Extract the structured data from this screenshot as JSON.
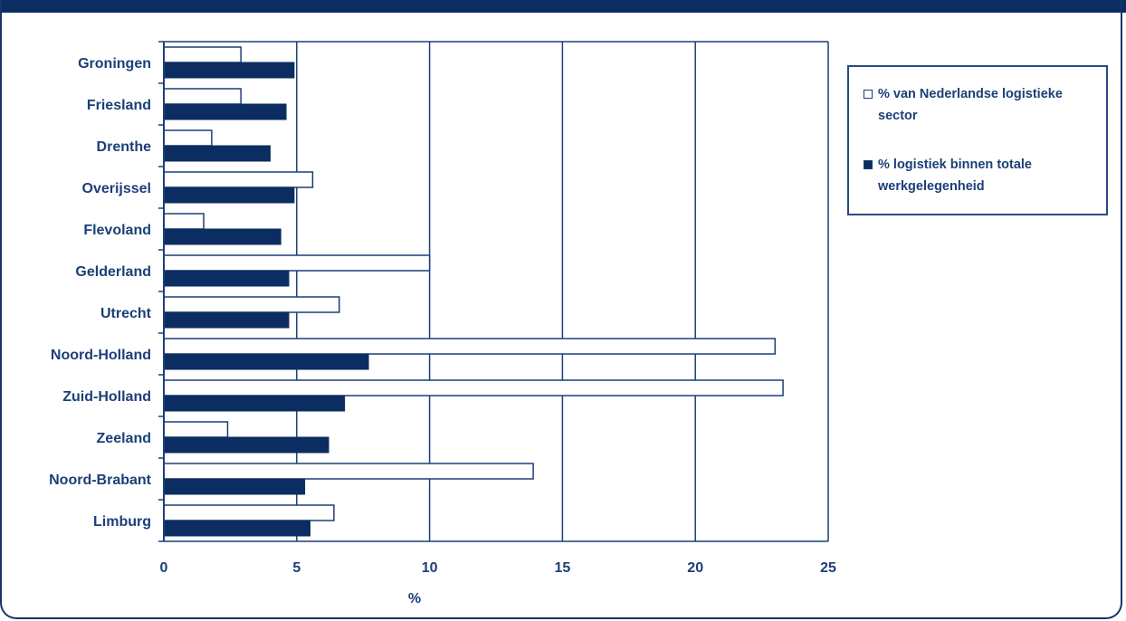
{
  "chart_data": {
    "type": "bar",
    "orientation": "horizontal",
    "categories": [
      "Groningen",
      "Friesland",
      "Drenthe",
      "Overijssel",
      "Flevoland",
      "Gelderland",
      "Utrecht",
      "Noord-Holland",
      "Zuid-Holland",
      "Zeeland",
      "Noord-Brabant",
      "Limburg"
    ],
    "series": [
      {
        "name": "% van Nederlandse logistieke sector",
        "values": [
          2.9,
          2.9,
          1.8,
          5.6,
          1.5,
          10.0,
          6.6,
          23.0,
          23.3,
          2.4,
          13.9,
          6.4
        ],
        "fill": "#ffffff",
        "stroke": "#1c3f78"
      },
      {
        "name": "% logistiek binnen totale werkgelegenheid",
        "values": [
          4.9,
          4.6,
          4.0,
          4.9,
          4.4,
          4.7,
          4.7,
          7.7,
          6.8,
          6.2,
          5.3,
          5.5
        ],
        "fill": "#0b2d61",
        "stroke": "#0b2d61"
      }
    ],
    "xticks": [
      "0",
      "5",
      "10",
      "15",
      "20",
      "25"
    ],
    "xlim": [
      0,
      25
    ],
    "xlabel": "%",
    "grid": "vertical",
    "legend_position": "right"
  }
}
